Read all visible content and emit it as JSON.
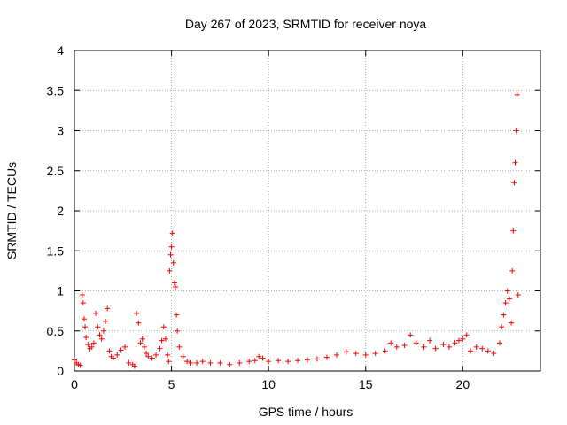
{
  "chart_data": {
    "type": "scatter",
    "title": "Day 267 of 2023, SRMTID for receiver noya",
    "xlabel": "GPS time / hours",
    "ylabel": "SRMTID / TECUs",
    "xlim": [
      0,
      24
    ],
    "ylim": [
      0,
      4
    ],
    "x_ticks": [
      0,
      5,
      10,
      15,
      20
    ],
    "y_ticks": [
      0,
      0.5,
      1,
      1.5,
      2,
      2.5,
      3,
      3.5,
      4
    ],
    "x_tick_labels": [
      "0",
      "5",
      "10",
      "15",
      "20"
    ],
    "y_tick_labels": [
      "0",
      "0.5",
      "1",
      "1.5",
      "2",
      "2.5",
      "3",
      "3.5",
      "4"
    ],
    "grid": true,
    "marker": "+",
    "series": [
      {
        "name": "SRMTID",
        "color": "#ff0000",
        "x": [
          0.0,
          0.1,
          0.2,
          0.3,
          0.4,
          0.45,
          0.5,
          0.55,
          0.6,
          0.7,
          0.8,
          0.9,
          1.0,
          1.1,
          1.2,
          1.3,
          1.4,
          1.5,
          1.6,
          1.7,
          1.8,
          1.9,
          2.0,
          2.2,
          2.4,
          2.6,
          2.8,
          3.0,
          3.1,
          3.2,
          3.3,
          3.4,
          3.5,
          3.6,
          3.7,
          3.8,
          4.0,
          4.2,
          4.4,
          4.5,
          4.6,
          4.7,
          4.8,
          4.85,
          4.9,
          4.95,
          5.0,
          5.05,
          5.1,
          5.15,
          5.2,
          5.25,
          5.3,
          5.4,
          5.6,
          5.8,
          6.0,
          6.3,
          6.6,
          7.0,
          7.5,
          8.0,
          8.5,
          9.0,
          9.3,
          9.5,
          9.7,
          10.0,
          10.5,
          11.0,
          11.5,
          12.0,
          12.5,
          13.0,
          13.5,
          14.0,
          14.5,
          15.0,
          15.5,
          16.0,
          16.3,
          16.6,
          17.0,
          17.3,
          17.6,
          18.0,
          18.3,
          18.6,
          19.0,
          19.3,
          19.6,
          19.8,
          20.0,
          20.2,
          20.4,
          20.7,
          21.0,
          21.3,
          21.6,
          21.9,
          22.0,
          22.1,
          22.2,
          22.3,
          22.4,
          22.5,
          22.55,
          22.6,
          22.65,
          22.7,
          22.75,
          22.8,
          22.85
        ],
        "y": [
          0.14,
          0.1,
          0.08,
          0.07,
          0.95,
          0.85,
          0.65,
          0.55,
          0.42,
          0.33,
          0.28,
          0.3,
          0.35,
          0.72,
          0.55,
          0.45,
          0.4,
          0.5,
          0.62,
          0.78,
          0.25,
          0.18,
          0.16,
          0.2,
          0.26,
          0.3,
          0.1,
          0.08,
          0.06,
          0.72,
          0.6,
          0.35,
          0.4,
          0.3,
          0.22,
          0.18,
          0.16,
          0.2,
          0.28,
          0.38,
          0.55,
          0.4,
          0.2,
          0.12,
          1.25,
          1.45,
          1.55,
          1.72,
          1.35,
          1.1,
          1.05,
          0.7,
          0.5,
          0.3,
          0.18,
          0.12,
          0.1,
          0.1,
          0.12,
          0.1,
          0.1,
          0.08,
          0.1,
          0.12,
          0.13,
          0.18,
          0.16,
          0.12,
          0.13,
          0.12,
          0.13,
          0.14,
          0.15,
          0.17,
          0.2,
          0.24,
          0.22,
          0.2,
          0.22,
          0.25,
          0.35,
          0.3,
          0.32,
          0.45,
          0.35,
          0.3,
          0.38,
          0.28,
          0.33,
          0.3,
          0.35,
          0.38,
          0.4,
          0.45,
          0.25,
          0.3,
          0.28,
          0.25,
          0.22,
          0.35,
          0.55,
          0.7,
          0.85,
          1.0,
          0.9,
          0.6,
          1.25,
          1.75,
          2.35,
          2.6,
          3.0,
          3.45,
          0.95
        ]
      }
    ]
  }
}
